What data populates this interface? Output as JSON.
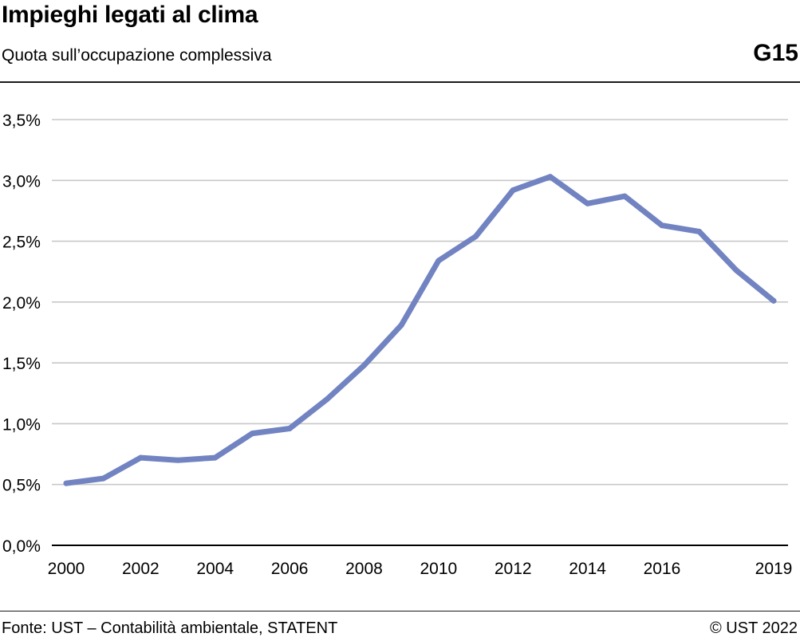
{
  "header": {
    "title": "Impieghi legati al clima",
    "subtitle": "Quota sull’occupazione complessiva",
    "code": "G15"
  },
  "footer": {
    "source": "Fonte: UST – Contabilità ambientale, STATENT",
    "copyright": "© UST 2022"
  },
  "colors": {
    "line": "#7283c2",
    "grid": "#c8c8c8",
    "axis": "#000000"
  },
  "chart_data": {
    "type": "line",
    "title": "Impieghi legati al clima",
    "subtitle": "Quota sull’occupazione complessiva",
    "xlabel": "",
    "ylabel": "",
    "x": [
      2000,
      2001,
      2002,
      2003,
      2004,
      2005,
      2006,
      2007,
      2008,
      2009,
      2010,
      2011,
      2012,
      2013,
      2014,
      2015,
      2016,
      2017,
      2018,
      2019
    ],
    "series": [
      {
        "values": [
          0.51,
          0.55,
          0.72,
          0.7,
          0.72,
          0.92,
          0.96,
          1.2,
          1.48,
          1.81,
          2.34,
          2.54,
          2.92,
          3.03,
          2.81,
          2.87,
          2.63,
          2.58,
          2.26,
          2.01
        ]
      }
    ],
    "xlim": [
      2000,
      2019
    ],
    "ylim": [
      0,
      3.5
    ],
    "x_ticks": [
      2000,
      2002,
      2004,
      2006,
      2008,
      2010,
      2012,
      2014,
      2016,
      2019
    ],
    "x_tick_labels": [
      "2000",
      "2002",
      "2004",
      "2006",
      "2008",
      "2010",
      "2012",
      "2014",
      "2016",
      "2019"
    ],
    "y_ticks": [
      0,
      0.5,
      1.0,
      1.5,
      2.0,
      2.5,
      3.0,
      3.5
    ],
    "y_tick_labels": [
      "0,0%",
      "0,5%",
      "1,0%",
      "1,5%",
      "2,0%",
      "2,5%",
      "3,0%",
      "3,5%"
    ],
    "grid": true,
    "legend": "none"
  }
}
